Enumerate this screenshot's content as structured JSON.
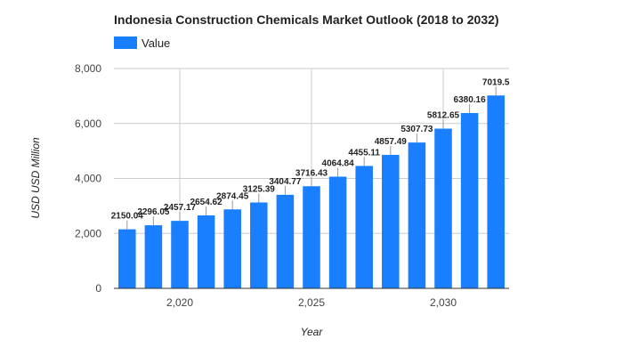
{
  "chart_data": {
    "type": "bar",
    "title": "Indonesia Construction Chemicals Market Outlook (2018 to 2032)",
    "xlabel": "Year",
    "ylabel": "USD USD Million",
    "legend": {
      "position": "top-left",
      "entries": [
        "Value"
      ]
    },
    "grid": true,
    "xlim": [
      2017.5,
      2032.5
    ],
    "ylim": [
      0,
      8000
    ],
    "x_ticks": [
      2020,
      2025,
      2030
    ],
    "x_tick_labels": [
      "2,020",
      "2,025",
      "2,030"
    ],
    "y_ticks": [
      0,
      2000,
      4000,
      6000,
      8000
    ],
    "y_tick_labels": [
      "0",
      "2,000",
      "4,000",
      "6,000",
      "8,000"
    ],
    "bar_color": "#1a7fff",
    "x": [
      2018,
      2019,
      2020,
      2021,
      2022,
      2023,
      2024,
      2025,
      2026,
      2027,
      2028,
      2029,
      2030,
      2031,
      2032
    ],
    "series": [
      {
        "name": "Value",
        "values": [
          2150.04,
          2296.05,
          2457.17,
          2654.62,
          2874.45,
          3125.39,
          3404.77,
          3716.43,
          4064.84,
          4455.11,
          4857.49,
          5307.73,
          5812.65,
          6380.16,
          7019.5
        ],
        "labels": [
          "2150.04",
          "2296.05",
          "2457.17",
          "2654.62",
          "2874.45",
          "3125.39",
          "3404.77",
          "3716.43",
          "4064.84",
          "4455.11",
          "4857.49",
          "5307.73",
          "5812.65",
          "6380.16",
          "7019.5"
        ]
      }
    ]
  }
}
